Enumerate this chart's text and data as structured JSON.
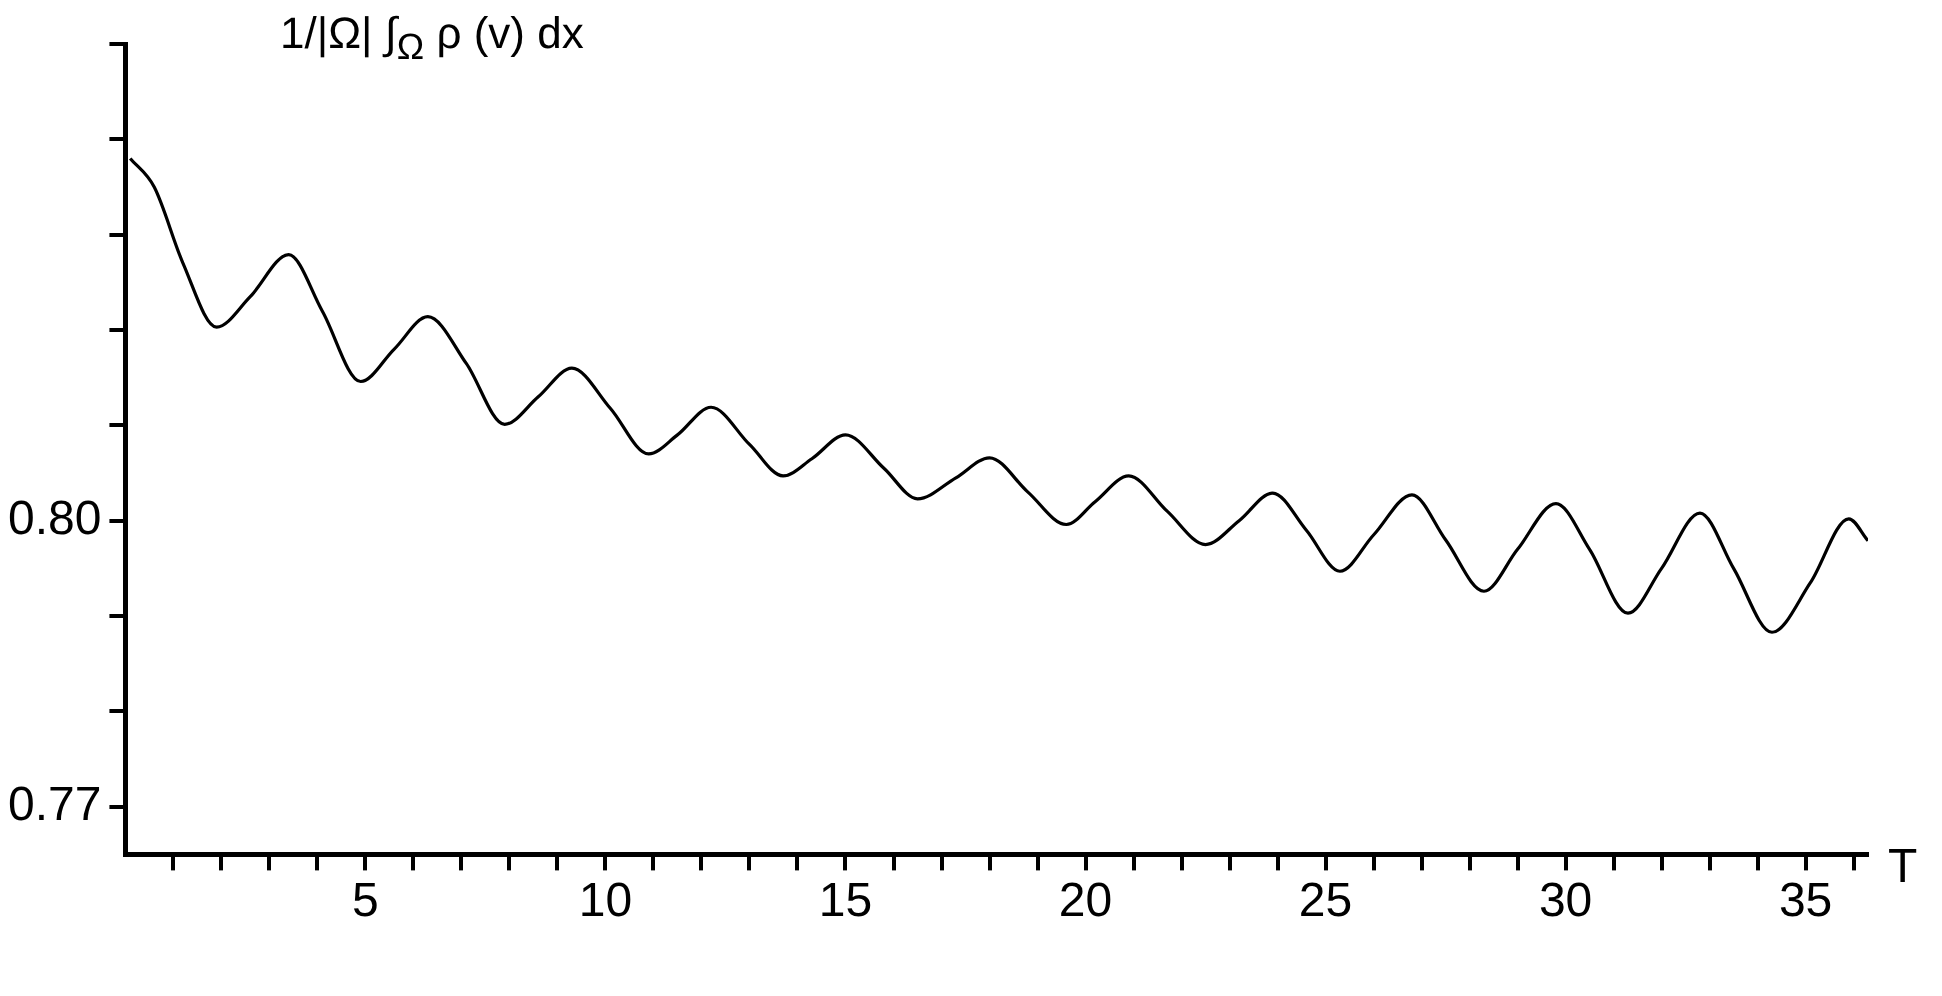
{
  "chart_data": {
    "type": "line",
    "ylabel": "1/|Ω| ∫$_{Ω}$ ρ (v) dx",
    "xlabel": "T",
    "xlim": [
      0,
      36.3
    ],
    "xticks": [
      {
        "value": 1,
        "label": null
      },
      {
        "value": 2,
        "label": null
      },
      {
        "value": 3,
        "label": null
      },
      {
        "value": 4,
        "label": null
      },
      5,
      {
        "value": 6,
        "label": null
      },
      {
        "value": 7,
        "label": null
      },
      {
        "value": 8,
        "label": null
      },
      {
        "value": 9,
        "label": null
      },
      10,
      {
        "value": 11,
        "label": null
      },
      {
        "value": 12,
        "label": null
      },
      {
        "value": 13,
        "label": null
      },
      {
        "value": 14,
        "label": null
      },
      15,
      {
        "value": 16,
        "label": null
      },
      {
        "value": 17,
        "label": null
      },
      {
        "value": 18,
        "label": null
      },
      {
        "value": 19,
        "label": null
      },
      20,
      {
        "value": 21,
        "label": null
      },
      {
        "value": 22,
        "label": null
      },
      {
        "value": 23,
        "label": null
      },
      {
        "value": 24,
        "label": null
      },
      25,
      {
        "value": 26,
        "label": null
      },
      {
        "value": 27,
        "label": null
      },
      {
        "value": 28,
        "label": null
      },
      {
        "value": 29,
        "label": null
      },
      30,
      {
        "value": 31,
        "label": null
      },
      {
        "value": 32,
        "label": null
      },
      {
        "value": 33,
        "label": null
      },
      {
        "value": 34,
        "label": null
      },
      35,
      {
        "value": 36,
        "label": null
      }
    ],
    "ylim": [
      0.765,
      0.85
    ],
    "yticks": [
      {
        "value": 0.77,
        "label": "0.77"
      },
      {
        "value": 0.78,
        "label": null
      },
      {
        "value": 0.79,
        "label": null
      },
      {
        "value": 0.8,
        "label": "0.80"
      },
      {
        "value": 0.81,
        "label": null
      },
      {
        "value": 0.82,
        "label": null
      },
      {
        "value": 0.83,
        "label": null
      },
      {
        "value": 0.84,
        "label": null
      },
      {
        "value": 0.85,
        "label": null
      }
    ],
    "grid": false,
    "legend": false,
    "marker": "none",
    "line_style": "solid",
    "series": [
      {
        "color": "#000000",
        "x": [
          0.1,
          0.6,
          1.2,
          1.9,
          2.6,
          3.4,
          4.1,
          4.9,
          5.6,
          6.3,
          7.1,
          7.9,
          8.6,
          9.3,
          10.1,
          10.9,
          11.5,
          12.2,
          13.0,
          13.7,
          14.3,
          15.0,
          15.8,
          16.5,
          17.3,
          18.0,
          18.8,
          19.6,
          20.2,
          20.9,
          21.7,
          22.5,
          23.2,
          23.9,
          24.6,
          25.3,
          26.0,
          26.8,
          27.5,
          28.3,
          29.0,
          29.8,
          30.5,
          31.3,
          32.0,
          32.8,
          33.5,
          34.3,
          35.1,
          35.9,
          36.3
        ],
        "values": [
          0.838,
          0.835,
          0.827,
          0.8203,
          0.8235,
          0.8279,
          0.822,
          0.8146,
          0.818,
          0.8214,
          0.8165,
          0.8101,
          0.813,
          0.816,
          0.8118,
          0.807,
          0.809,
          0.8119,
          0.808,
          0.8047,
          0.8065,
          0.809,
          0.8055,
          0.8023,
          0.8045,
          0.8066,
          0.803,
          0.7996,
          0.802,
          0.8047,
          0.801,
          0.7975,
          0.8,
          0.8029,
          0.799,
          0.7947,
          0.7985,
          0.8027,
          0.798,
          0.7926,
          0.797,
          0.8018,
          0.797,
          0.7903,
          0.795,
          0.8008,
          0.795,
          0.7883,
          0.7935,
          0.8002,
          0.7979
        ]
      }
    ]
  }
}
